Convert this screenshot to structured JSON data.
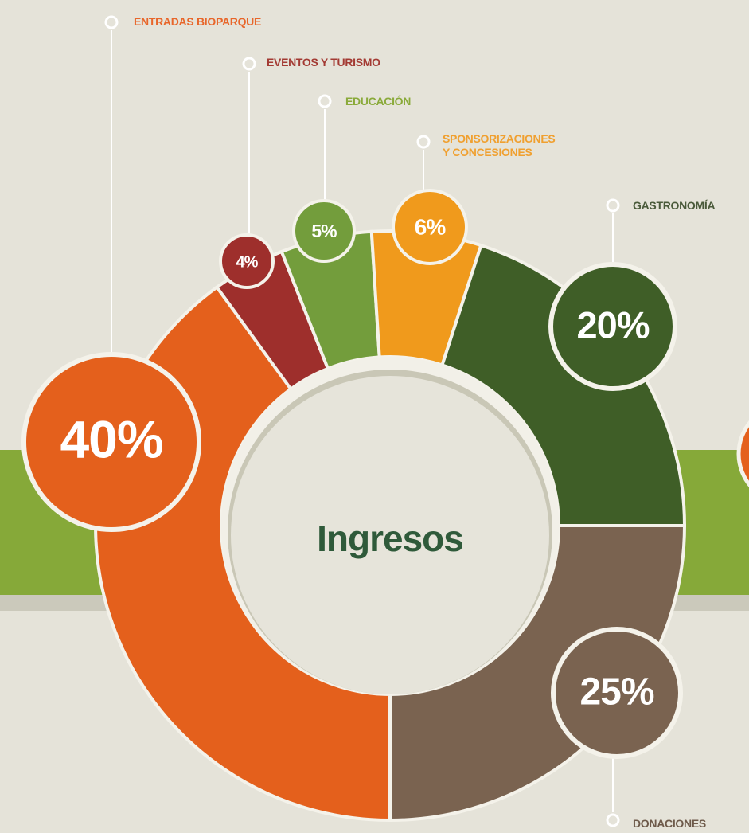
{
  "chart_data": {
    "type": "donut",
    "title": "Ingresos",
    "categories": [
      "DONACIONES",
      "ENTRADAS BIOPARQUE",
      "EVENTOS Y TURISMO",
      "EDUCACIÓN",
      "SPONSORIZACIONES Y CONCESIONES",
      "GASTRONOMÍA"
    ],
    "values": [
      25,
      40,
      4,
      5,
      6,
      20
    ],
    "value_labels": [
      "25%",
      "40%",
      "4%",
      "5%",
      "6%",
      "20%"
    ],
    "colors": [
      "#7a6350",
      "#e4601c",
      "#9e2f2c",
      "#739d3c",
      "#f09a1c",
      "#3f5e27"
    ]
  }
}
